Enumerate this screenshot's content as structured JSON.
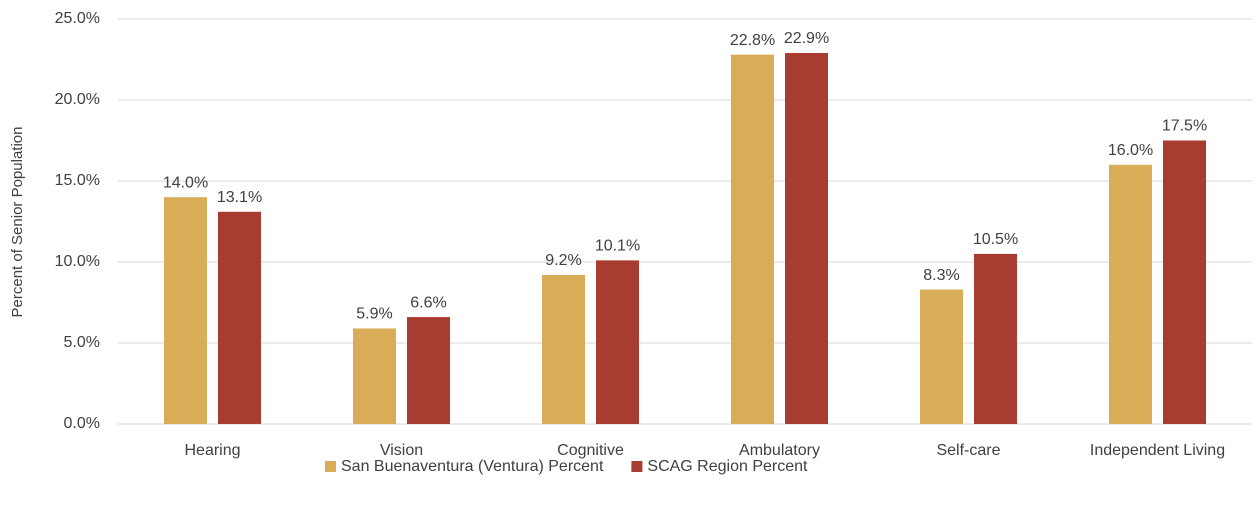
{
  "chart_data": {
    "type": "bar",
    "y_label": "Percent of Senior Population",
    "categories": [
      "Hearing",
      "Vision",
      "Cognitive",
      "Ambulatory",
      "Self-care",
      "Independent Living"
    ],
    "series": [
      {
        "name": "San Buenaventura (Ventura) Percent",
        "color": "#d9ad57",
        "values": [
          14.0,
          5.9,
          9.2,
          22.8,
          8.3,
          16.0
        ],
        "value_labels": [
          "14.0%",
          "5.9%",
          "9.2%",
          "22.8%",
          "8.3%",
          "16.0%"
        ]
      },
      {
        "name": "SCAG Region Percent",
        "color": "#a93c30",
        "values": [
          13.1,
          6.6,
          10.1,
          22.9,
          10.5,
          17.5
        ],
        "value_labels": [
          "13.1%",
          "6.6%",
          "10.1%",
          "22.9%",
          "10.5%",
          "17.5%"
        ]
      }
    ],
    "ylim": [
      0,
      25
    ],
    "yticks": [
      {
        "value": 0,
        "label": "0.0%"
      },
      {
        "value": 5,
        "label": "5.0%"
      },
      {
        "value": 10,
        "label": "10.0%"
      },
      {
        "value": 15,
        "label": "15.0%"
      },
      {
        "value": 20,
        "label": "20.0%"
      },
      {
        "value": 25,
        "label": "25.0%"
      }
    ],
    "grid": true,
    "legend": "bottom"
  }
}
